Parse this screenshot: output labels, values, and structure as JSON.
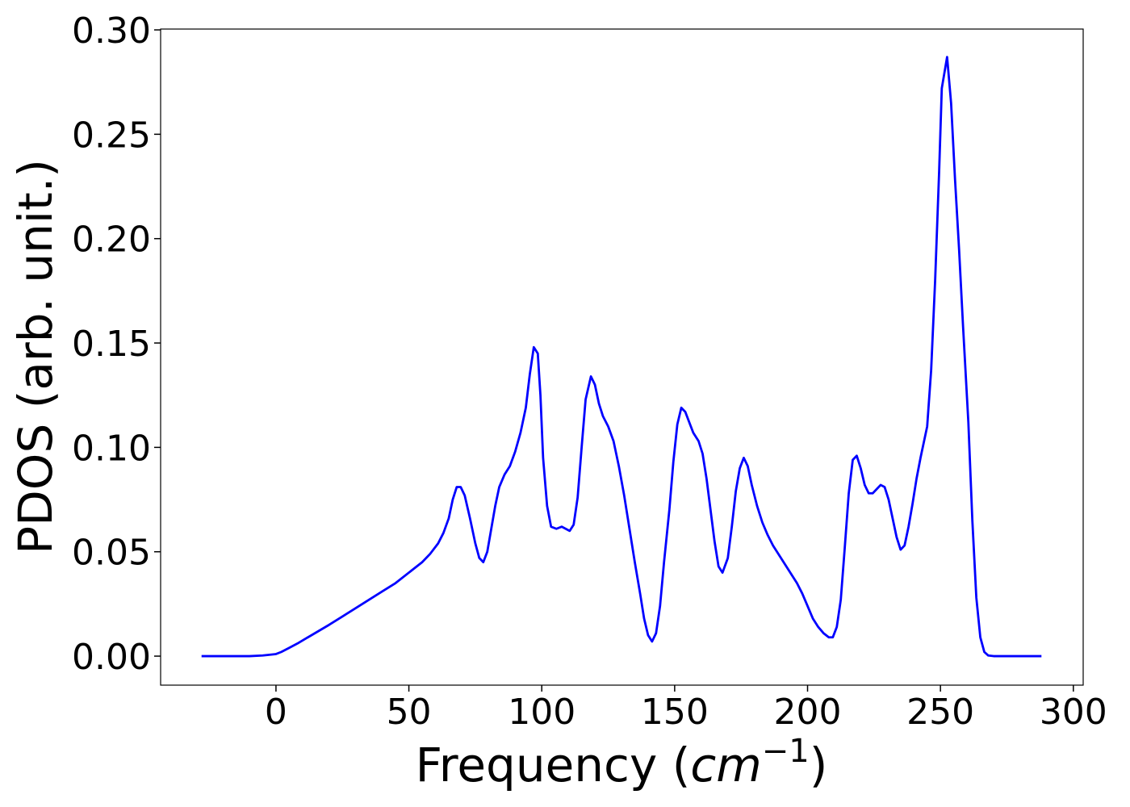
{
  "chart_data": {
    "type": "line",
    "xlabel": {
      "text": "Frequency (",
      "unit": "cm",
      "exponent": "−1",
      "close": ")"
    },
    "ylabel": "PDOS (arb. unit.)",
    "xlim": [
      -43.4,
      303.7
    ],
    "ylim": [
      -0.0139,
      0.3004
    ],
    "xticks": [
      0,
      50,
      100,
      150,
      200,
      250,
      300
    ],
    "yticks": [
      {
        "value": 0,
        "label": "0.00"
      },
      {
        "value": 0.05,
        "label": "0.05"
      },
      {
        "value": 0.1,
        "label": "0.10"
      },
      {
        "value": 0.15,
        "label": "0.15"
      },
      {
        "value": 0.2,
        "label": "0.20"
      },
      {
        "value": 0.25,
        "label": "0.25"
      },
      {
        "value": 0.3,
        "label": "0.30"
      }
    ],
    "grid": false,
    "series": [
      {
        "color": "#0000ff",
        "x": [
          -28,
          -20,
          -10,
          -5,
          0,
          2,
          5,
          8,
          12,
          16,
          20,
          25,
          30,
          35,
          40,
          45,
          50,
          55,
          58,
          61,
          63,
          65,
          66.5,
          68,
          69.5,
          71,
          73,
          75,
          76.5,
          78,
          79.5,
          81,
          82.5,
          84,
          86,
          88,
          90,
          92,
          94,
          95.5,
          97,
          98.5,
          99.5,
          100.5,
          102,
          103.5,
          105.5,
          107.5,
          110.5,
          112,
          113.5,
          115,
          116.5,
          118.5,
          120,
          121.5,
          123,
          125,
          127,
          129,
          131,
          133,
          135,
          137,
          138.5,
          140,
          141.5,
          143,
          144.5,
          146,
          148,
          149.5,
          151,
          152.5,
          154,
          155.5,
          157,
          159,
          160.5,
          162,
          163.5,
          165,
          166.5,
          168,
          170,
          171.5,
          173,
          174.5,
          176,
          177.5,
          179,
          181,
          183,
          185,
          187,
          190,
          193,
          196,
          198,
          200,
          202,
          204,
          206,
          208,
          209.5,
          211,
          212.5,
          214,
          215.5,
          217,
          218.5,
          220,
          221.5,
          223,
          224.5,
          226,
          227.5,
          229,
          230.5,
          232,
          233.5,
          235,
          236.5,
          238,
          239.5,
          241,
          242.5,
          245,
          246.5,
          248,
          249.5,
          250.5,
          252.5,
          254,
          255.5,
          257,
          258.5,
          260.5,
          262,
          263.5,
          265,
          266.5,
          268,
          270,
          275,
          281,
          288
        ],
        "values": [
          0,
          0,
          0,
          0.0003,
          0.001,
          0.002,
          0.004,
          0.006,
          0.009,
          0.012,
          0.015,
          0.019,
          0.023,
          0.027,
          0.031,
          0.035,
          0.04,
          0.045,
          0.049,
          0.054,
          0.059,
          0.066,
          0.075,
          0.081,
          0.081,
          0.077,
          0.066,
          0.054,
          0.047,
          0.045,
          0.05,
          0.061,
          0.072,
          0.081,
          0.087,
          0.091,
          0.098,
          0.107,
          0.119,
          0.135,
          0.148,
          0.145,
          0.125,
          0.095,
          0.072,
          0.062,
          0.061,
          0.062,
          0.06,
          0.063,
          0.076,
          0.1,
          0.123,
          0.134,
          0.13,
          0.121,
          0.115,
          0.11,
          0.103,
          0.091,
          0.077,
          0.061,
          0.045,
          0.03,
          0.018,
          0.01,
          0.007,
          0.011,
          0.024,
          0.045,
          0.07,
          0.093,
          0.111,
          0.119,
          0.117,
          0.112,
          0.107,
          0.103,
          0.097,
          0.085,
          0.07,
          0.055,
          0.043,
          0.04,
          0.047,
          0.062,
          0.079,
          0.09,
          0.095,
          0.091,
          0.082,
          0.072,
          0.064,
          0.058,
          0.053,
          0.047,
          0.041,
          0.035,
          0.03,
          0.024,
          0.018,
          0.014,
          0.011,
          0.009,
          0.009,
          0.014,
          0.027,
          0.052,
          0.078,
          0.094,
          0.096,
          0.09,
          0.082,
          0.078,
          0.078,
          0.08,
          0.082,
          0.081,
          0.075,
          0.066,
          0.057,
          0.051,
          0.053,
          0.062,
          0.073,
          0.085,
          0.095,
          0.11,
          0.137,
          0.18,
          0.232,
          0.272,
          0.287,
          0.265,
          0.228,
          0.195,
          0.158,
          0.112,
          0.065,
          0.028,
          0.009,
          0.002,
          0.0003,
          0,
          0,
          0,
          0
        ]
      }
    ]
  }
}
